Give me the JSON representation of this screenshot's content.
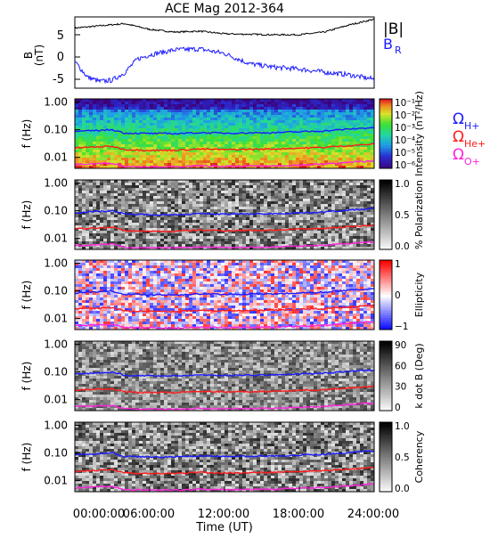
{
  "title": "ACE Mag 2012-364",
  "xaxis": {
    "label": "Time (UT)",
    "ticks": [
      "00:00:00",
      "06:00:00",
      "12:00:00",
      "18:00:00",
      "24:00:00"
    ],
    "values": [
      0,
      6,
      12,
      18,
      24
    ]
  },
  "freq_ticks": [
    "1.00",
    "0.10",
    "0.01"
  ],
  "colors": {
    "B_total": "#000000",
    "B_R": "#1a1aff",
    "H_plus": "#1a1aff",
    "He_plus": "#ff1a1a",
    "O_plus": "#ff22dd"
  },
  "panel1": {
    "ylabel_line1": "B",
    "ylabel_line2": "(nT)",
    "yticks": [
      "5",
      "0",
      "-5"
    ],
    "legend_total": "|B|",
    "legend_br_main": "B",
    "legend_br_sub": "R"
  },
  "panels": [
    {
      "id": "intensity",
      "ylabel": "f (Hz)",
      "cbar_label": "Intensity (nT²/Hz)",
      "cbar_ticks": [
        "10⁻¹",
        "10⁻²",
        "10⁻³",
        "10⁻⁴",
        "10⁻⁵",
        "10⁻⁶"
      ]
    },
    {
      "id": "polarization",
      "ylabel": "f (Hz)",
      "cbar_label": "% Polarization",
      "cbar_ticks": [
        "1.0",
        "0.5",
        "0.0"
      ]
    },
    {
      "id": "ellipticity",
      "ylabel": "f (Hz)",
      "cbar_label": "Ellipticity",
      "cbar_ticks": [
        "1",
        "0",
        "−1"
      ]
    },
    {
      "id": "kdotb",
      "ylabel": "f (Hz)",
      "cbar_label": "k dot B (Deg)",
      "cbar_ticks": [
        "90",
        "60",
        "30",
        "0"
      ]
    },
    {
      "id": "coherency",
      "ylabel": "f (Hz)",
      "cbar_label": "Coherency",
      "cbar_ticks": [
        "1.0",
        "0.5",
        "0.0"
      ]
    }
  ],
  "omega_legend": [
    {
      "sym": "Ω",
      "sub": "H+"
    },
    {
      "sym": "Ω",
      "sub": "He+"
    },
    {
      "sym": "Ω",
      "sub": "O+"
    }
  ],
  "chart_data": {
    "type": "line",
    "title": "ACE Mag 2012-364",
    "xlabel": "Time (UT)",
    "xlim": [
      0,
      24
    ],
    "series": [
      {
        "name": "|B|",
        "x": [
          0,
          2,
          4,
          6,
          8,
          10,
          12,
          14,
          16,
          18,
          20,
          22,
          24
        ],
        "values": [
          6.5,
          7.0,
          7.5,
          6.2,
          5.6,
          5.8,
          5.2,
          5.1,
          5.0,
          5.0,
          5.6,
          7.2,
          8.5
        ]
      },
      {
        "name": "B_R",
        "x": [
          0,
          1,
          2,
          3,
          4,
          5,
          6,
          8,
          10,
          12,
          14,
          16,
          18,
          20,
          22,
          24
        ],
        "values": [
          -1.0,
          -4.5,
          -5.5,
          -5.2,
          -3.5,
          -0.5,
          0.5,
          1.6,
          1.8,
          0.8,
          -1.5,
          -2.3,
          -2.7,
          -3.4,
          -4.0,
          -5.0
        ]
      },
      {
        "name": "ΩH+ (Hz)",
        "x": [
          0,
          3,
          4,
          6,
          8,
          10,
          12,
          16,
          20,
          24
        ],
        "values": [
          0.085,
          0.1,
          0.075,
          0.073,
          0.072,
          0.078,
          0.075,
          0.078,
          0.09,
          0.12
        ]
      },
      {
        "name": "ΩHe+ (Hz)",
        "x": [
          0,
          3,
          4,
          6,
          8,
          10,
          12,
          16,
          20,
          24
        ],
        "values": [
          0.022,
          0.025,
          0.019,
          0.018,
          0.018,
          0.02,
          0.019,
          0.02,
          0.023,
          0.03
        ]
      },
      {
        "name": "ΩO+ (Hz)",
        "x": [
          0,
          3,
          4,
          6,
          8,
          10,
          12,
          16,
          20,
          24
        ],
        "values": [
          0.0055,
          0.0062,
          0.0047,
          0.0046,
          0.0045,
          0.0049,
          0.0047,
          0.0049,
          0.0057,
          0.0075
        ]
      }
    ],
    "panel1_ylim": [
      -7,
      9
    ],
    "freq_ylim": [
      0.004,
      1.3
    ],
    "freq_scale": "log",
    "grid": false
  }
}
